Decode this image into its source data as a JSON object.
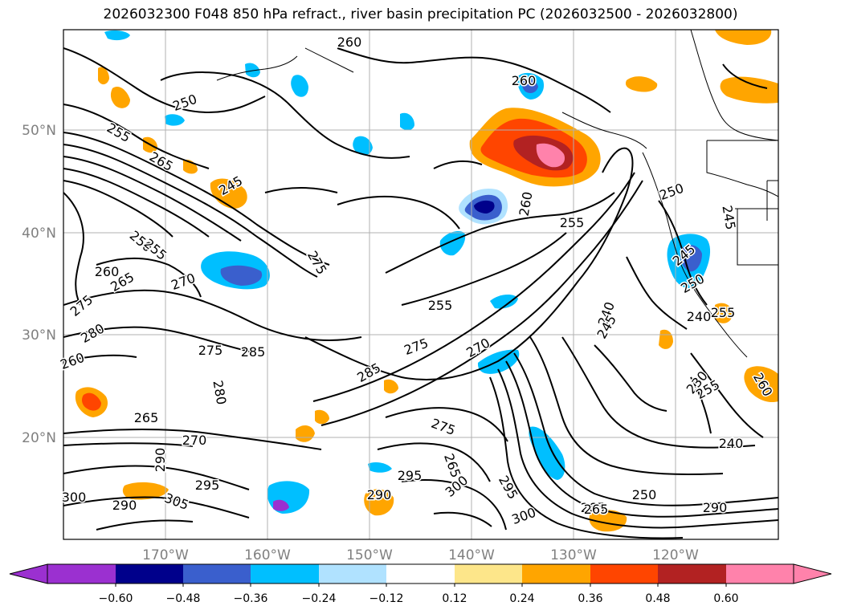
{
  "title": "2026032300 F048 850 hPa refract., river basin precipitation PC (2026032500 - 2026032800)",
  "map": {
    "lon_labels": [
      "170°W",
      "160°W",
      "150°W",
      "140°W",
      "130°W",
      "120°W"
    ],
    "lat_labels": [
      "50°N",
      "40°N",
      "30°N",
      "20°N"
    ],
    "contour_labels": [
      "250",
      "255",
      "265",
      "245",
      "260",
      "275",
      "260",
      "250",
      "265",
      "270",
      "255",
      "275",
      "280",
      "260",
      "265",
      "270",
      "275",
      "280",
      "285",
      "290",
      "295",
      "300",
      "305",
      "290",
      "255",
      "260",
      "275",
      "285",
      "270",
      "275",
      "295",
      "265",
      "300",
      "295",
      "290",
      "300",
      "265",
      "250",
      "290",
      "240",
      "260",
      "255",
      "250",
      "245",
      "240",
      "245",
      "250",
      "255",
      "230",
      "255",
      "260",
      "240",
      "265",
      "245"
    ]
  },
  "colorbar": {
    "tick_labels": [
      "−0.60",
      "−0.48",
      "−0.36",
      "−0.24",
      "−0.12",
      "0.12",
      "0.24",
      "0.36",
      "0.48",
      "0.60"
    ],
    "colors": [
      "#9b30d0",
      "#00008b",
      "#3a5fcd",
      "#00bfff",
      "#b0e2ff",
      "#ffffff",
      "#fde68a",
      "#ffa500",
      "#ff4500",
      "#b22222",
      "#ff82ab",
      "#ff82ab"
    ]
  }
}
